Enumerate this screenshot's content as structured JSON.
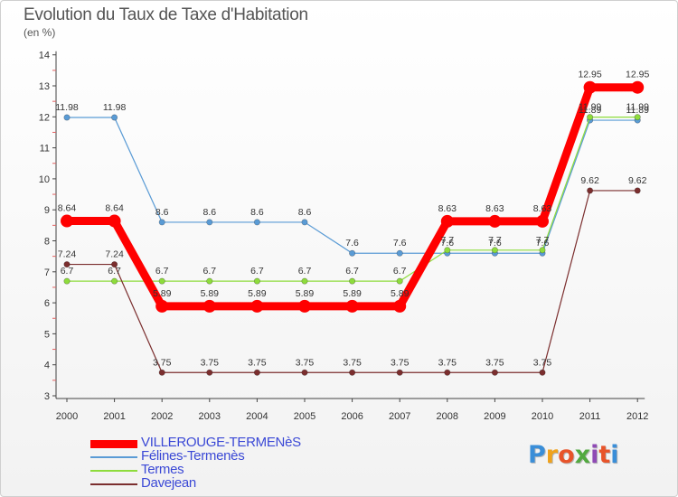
{
  "header": {
    "title": "Evolution du Taux de Taxe d'Habitation",
    "subtitle": "(en %)"
  },
  "logo": {
    "letters": [
      "P",
      "r",
      "o",
      "x",
      "i",
      "t",
      "i"
    ],
    "colors": [
      "#3a8ed8",
      "#f0a21c",
      "#e8542a",
      "#53a940",
      "#8f4ab5",
      "#e8542a",
      "#3a8ed8"
    ]
  },
  "chart_data": {
    "type": "line",
    "title": "Evolution du Taux de Taxe d'Habitation",
    "ylabel": "(en %)",
    "xlabel": "",
    "ylim": [
      3,
      14
    ],
    "yticks": [
      "3",
      "4",
      "5",
      "6",
      "7",
      "8",
      "9",
      "10",
      "11",
      "12",
      "13",
      "14"
    ],
    "categories": [
      "2000",
      "2001",
      "2002",
      "2003",
      "2004",
      "2005",
      "2006",
      "2007",
      "2008",
      "2009",
      "2010",
      "2011",
      "2012"
    ],
    "grid": false,
    "legend_position": "bottom-left",
    "series": [
      {
        "name": "VILLEROUGE-TERMENèS",
        "color": "#ff0000",
        "values": [
          8.64,
          8.64,
          5.89,
          5.89,
          5.89,
          5.89,
          5.89,
          5.89,
          8.63,
          8.63,
          8.63,
          12.95,
          12.95
        ],
        "labels": [
          "8.64",
          "8.64",
          "5.89",
          "5.89",
          "5.89",
          "5.89",
          "5.89",
          "5.89",
          "8.63",
          "8.63",
          "8.63",
          "12.95",
          "12.95"
        ]
      },
      {
        "name": "Félines-Termenès",
        "color": "#5a9bd5",
        "values": [
          11.98,
          11.98,
          8.6,
          8.6,
          8.6,
          8.6,
          7.6,
          7.6,
          7.6,
          7.6,
          7.6,
          11.89,
          11.89
        ],
        "labels": [
          "11.98",
          "11.98",
          "8.6",
          "8.6",
          "8.6",
          "8.6",
          "7.6",
          "7.6",
          "7.6",
          "7.6",
          "7.6",
          "11.89",
          "11.89"
        ]
      },
      {
        "name": "Termes",
        "color": "#8edc3c",
        "values": [
          6.7,
          6.7,
          6.7,
          6.7,
          6.7,
          6.7,
          6.7,
          6.7,
          7.7,
          7.7,
          7.7,
          11.99,
          11.99
        ],
        "labels": [
          "6.7",
          "6.7",
          "6.7",
          "6.7",
          "6.7",
          "6.7",
          "6.7",
          "6.7",
          "7.7",
          "7.7",
          "7.7",
          "11.99",
          "11.99"
        ]
      },
      {
        "name": "Davejean",
        "color": "#7b2e2e",
        "values": [
          7.24,
          7.24,
          3.75,
          3.75,
          3.75,
          3.75,
          3.75,
          3.75,
          3.75,
          3.75,
          3.75,
          9.62,
          9.62
        ],
        "labels": [
          "7.24",
          "7.24",
          "3.75",
          "3.75",
          "3.75",
          "3.75",
          "3.75",
          "3.75",
          "3.75",
          "3.75",
          "3.75",
          "9.62",
          "9.62"
        ]
      }
    ]
  }
}
